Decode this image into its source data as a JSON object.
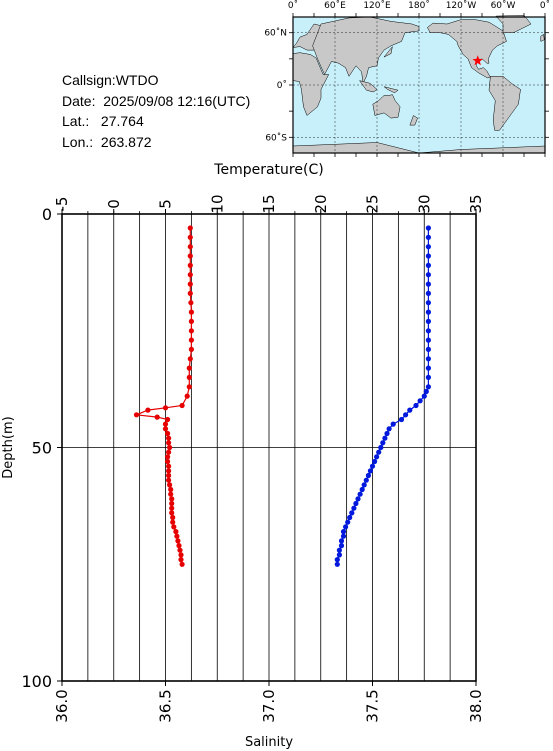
{
  "info": {
    "callsign": "Callsign:WTDO",
    "date": "Date:  2025/09/08 12:16(UTC)",
    "lat": "Lat.:   27.764",
    "lon": "Lon.:  263.872"
  },
  "map": {
    "lon_labels": [
      "0˚",
      "60˚E",
      "120˚E",
      "180˚",
      "120˚W",
      "60˚W",
      "0˚"
    ],
    "lat_labels": [
      "60˚N",
      "0˚",
      "60˚S"
    ],
    "ocean_color": "#c8f0fa",
    "land_color": "#c8c8c8",
    "marker": "red-star",
    "marker_lon": 263.872,
    "marker_lat": 27.764
  },
  "chart_data": {
    "type": "line",
    "ylabel": "Depth(m)",
    "ylim": [
      100,
      0
    ],
    "yticks": [
      "0",
      "50",
      "100"
    ],
    "top_axis": {
      "label": "Temperature(C)",
      "lim": [
        -5,
        35
      ],
      "ticks": [
        "-5",
        "0",
        "5",
        "10",
        "15",
        "20",
        "25",
        "30",
        "35"
      ]
    },
    "bottom_axis": {
      "label": "Salinity",
      "lim": [
        36.0,
        38.0
      ],
      "ticks": [
        "36.0",
        "36.5",
        "37.0",
        "37.5",
        "38.0"
      ]
    },
    "series": [
      {
        "axis": "temperature",
        "color": "#e60000",
        "points": [
          [
            7.4,
            3
          ],
          [
            7.4,
            5
          ],
          [
            7.4,
            7
          ],
          [
            7.4,
            9
          ],
          [
            7.4,
            11
          ],
          [
            7.4,
            13
          ],
          [
            7.4,
            15
          ],
          [
            7.4,
            17
          ],
          [
            7.45,
            19
          ],
          [
            7.5,
            21
          ],
          [
            7.5,
            23
          ],
          [
            7.5,
            25
          ],
          [
            7.5,
            27
          ],
          [
            7.5,
            29
          ],
          [
            7.4,
            31
          ],
          [
            7.3,
            33
          ],
          [
            7.3,
            35
          ],
          [
            7.3,
            37
          ],
          [
            7.1,
            39
          ],
          [
            6.6,
            41
          ],
          [
            5.0,
            41.5
          ],
          [
            3.3,
            42
          ],
          [
            2.2,
            43
          ],
          [
            4.2,
            43.5
          ],
          [
            5.2,
            44
          ],
          [
            5.0,
            45
          ],
          [
            5.0,
            46
          ],
          [
            5.2,
            47
          ],
          [
            5.3,
            48
          ],
          [
            5.3,
            49
          ],
          [
            5.4,
            50
          ],
          [
            5.3,
            51
          ],
          [
            5.2,
            52
          ],
          [
            5.2,
            53
          ],
          [
            5.3,
            54
          ],
          [
            5.3,
            55
          ],
          [
            5.3,
            56
          ],
          [
            5.3,
            57
          ],
          [
            5.4,
            58
          ],
          [
            5.5,
            59
          ],
          [
            5.5,
            60
          ],
          [
            5.6,
            61
          ],
          [
            5.6,
            62
          ],
          [
            5.6,
            63
          ],
          [
            5.6,
            64
          ],
          [
            5.7,
            65
          ],
          [
            5.7,
            66
          ],
          [
            5.8,
            67
          ],
          [
            6.0,
            68
          ],
          [
            6.1,
            69
          ],
          [
            6.2,
            70
          ],
          [
            6.3,
            71
          ],
          [
            6.4,
            72
          ],
          [
            6.5,
            73
          ],
          [
            6.5,
            74
          ],
          [
            6.6,
            75
          ]
        ]
      },
      {
        "axis": "salinity",
        "color": "#0019dc",
        "points": [
          [
            37.77,
            3
          ],
          [
            37.77,
            5
          ],
          [
            37.77,
            7
          ],
          [
            37.77,
            9
          ],
          [
            37.77,
            11
          ],
          [
            37.77,
            13
          ],
          [
            37.77,
            15
          ],
          [
            37.77,
            17
          ],
          [
            37.77,
            19
          ],
          [
            37.77,
            21
          ],
          [
            37.77,
            23
          ],
          [
            37.77,
            25
          ],
          [
            37.77,
            27
          ],
          [
            37.77,
            29
          ],
          [
            37.77,
            31
          ],
          [
            37.77,
            33
          ],
          [
            37.77,
            35
          ],
          [
            37.77,
            37
          ],
          [
            37.76,
            38
          ],
          [
            37.75,
            39
          ],
          [
            37.73,
            40
          ],
          [
            37.71,
            41
          ],
          [
            37.68,
            42
          ],
          [
            37.66,
            43
          ],
          [
            37.64,
            44
          ],
          [
            37.6,
            45
          ],
          [
            37.58,
            46
          ],
          [
            37.57,
            47
          ],
          [
            37.56,
            48
          ],
          [
            37.55,
            49
          ],
          [
            37.54,
            50
          ],
          [
            37.53,
            51
          ],
          [
            37.52,
            52
          ],
          [
            37.51,
            53
          ],
          [
            37.5,
            54
          ],
          [
            37.49,
            55
          ],
          [
            37.48,
            56
          ],
          [
            37.47,
            57
          ],
          [
            37.46,
            58
          ],
          [
            37.45,
            59
          ],
          [
            37.44,
            60
          ],
          [
            37.43,
            61
          ],
          [
            37.42,
            62
          ],
          [
            37.41,
            63
          ],
          [
            37.4,
            64
          ],
          [
            37.39,
            65
          ],
          [
            37.38,
            66
          ],
          [
            37.37,
            67
          ],
          [
            37.36,
            68
          ],
          [
            37.36,
            69
          ],
          [
            37.35,
            70
          ],
          [
            37.35,
            71
          ],
          [
            37.34,
            72
          ],
          [
            37.34,
            73
          ],
          [
            37.33,
            74
          ],
          [
            37.33,
            75
          ]
        ]
      }
    ],
    "grid": true
  }
}
